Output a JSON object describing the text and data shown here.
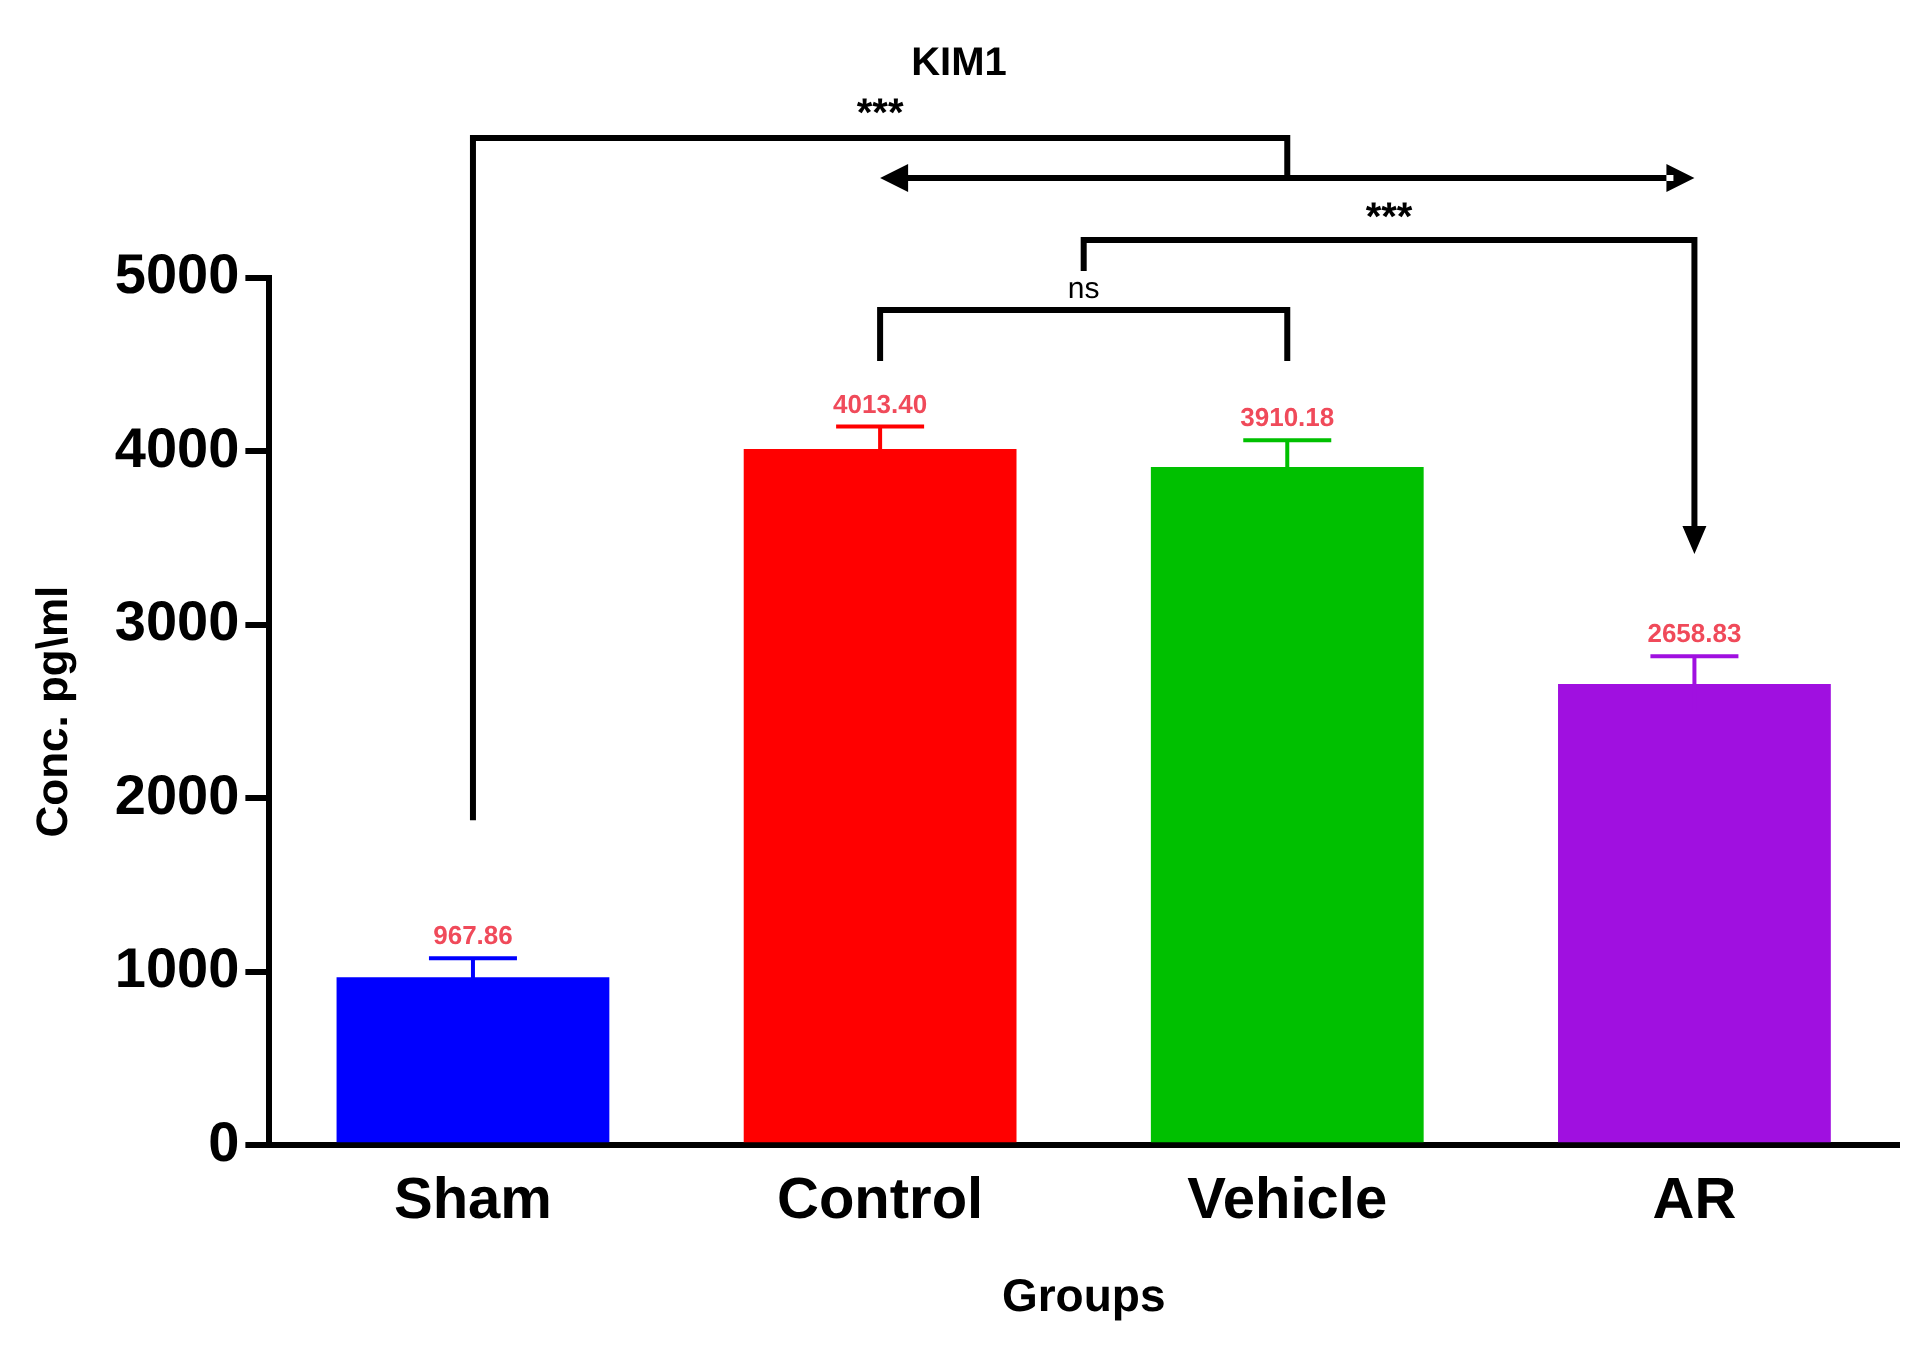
{
  "chart_data": {
    "type": "bar",
    "title": "KIM1",
    "xlabel": "Groups",
    "ylabel": "Conc. pg\\ml",
    "categories": [
      "Sham",
      "Control",
      "Vehicle",
      "AR"
    ],
    "values": [
      967.86,
      4013.4,
      3910.18,
      2658.83
    ],
    "colors": [
      "#0000ff",
      "#ff0000",
      "#00c000",
      "#a010e0"
    ],
    "errors": [
      110,
      130,
      155,
      160
    ],
    "value_labels": [
      "967.86",
      "4013.40",
      "3910.18",
      "2658.83"
    ],
    "ylim": [
      0,
      5000
    ],
    "yticks": [
      0,
      1000,
      2000,
      3000,
      4000,
      5000
    ],
    "grid": false,
    "legend": false,
    "annotations": [
      "***",
      "ns",
      "***"
    ]
  }
}
